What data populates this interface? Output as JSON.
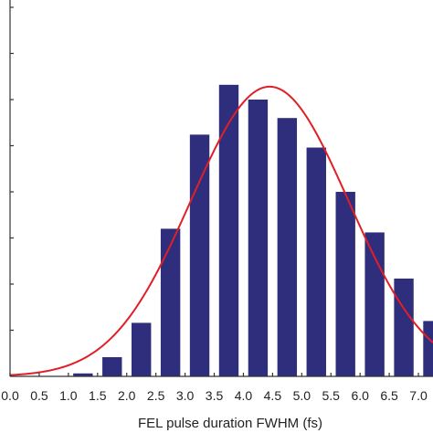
{
  "chart_data": {
    "type": "bar",
    "title": "",
    "xlabel": "FEL pulse duration FWHM (fs)",
    "ylabel": "",
    "x_ticks": [
      "0.0",
      "0.5",
      "1.0",
      "1.5",
      "2.0",
      "2.5",
      "3.0",
      "3.5",
      "4.0",
      "4.5",
      "5.0",
      "5.5",
      "6.0",
      "6.5",
      "7.0"
    ],
    "xlim": [
      0.0,
      7.25
    ],
    "ylim": [
      0,
      100
    ],
    "y_tick_count": 9,
    "bar_width": 0.25,
    "bars": [
      {
        "x": 1.25,
        "value": 0.8
      },
      {
        "x": 1.75,
        "value": 5.2
      },
      {
        "x": 2.25,
        "value": 14.5
      },
      {
        "x": 2.75,
        "value": 40.0
      },
      {
        "x": 3.25,
        "value": 65.5
      },
      {
        "x": 3.75,
        "value": 79.0
      },
      {
        "x": 4.25,
        "value": 75.0
      },
      {
        "x": 4.75,
        "value": 70.0
      },
      {
        "x": 5.25,
        "value": 62.0
      },
      {
        "x": 5.75,
        "value": 50.0
      },
      {
        "x": 6.25,
        "value": 39.0
      },
      {
        "x": 6.75,
        "value": 26.5
      },
      {
        "x": 7.25,
        "value": 15.0
      }
    ],
    "fit_curve": {
      "type": "gaussian",
      "peak_x": 4.45,
      "peak_value": 78.5,
      "sigma": 1.35,
      "x_range": [
        0.0,
        7.25
      ]
    },
    "colors": {
      "bar": "#2e2e7d",
      "fit_curve": "#e01f26",
      "axis": "#333333"
    },
    "grid": false,
    "legend": "none"
  }
}
